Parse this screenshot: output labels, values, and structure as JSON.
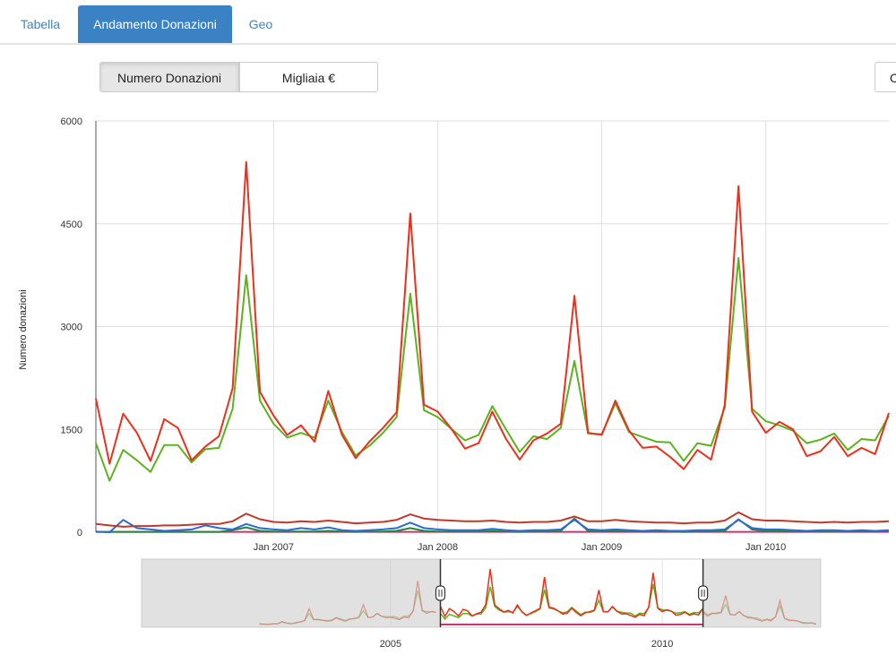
{
  "tabs": [
    {
      "label": "Tabella",
      "active": false
    },
    {
      "label": "Andamento Donazioni",
      "active": true
    },
    {
      "label": "Geo",
      "active": false
    }
  ],
  "toggle": {
    "left_label": "Numero Donazioni",
    "right_label": "Migliaia €",
    "selected": "Numero Donazioni"
  },
  "partial_button_label": "C",
  "colors": {
    "accent": "#3b82c4",
    "red": "#e8321e",
    "green": "#5db21f",
    "darkred": "#c0392b",
    "blue": "#2e6bd1",
    "darkgreen": "#1e8a3a",
    "magenta": "#d1306f"
  },
  "chart_data": {
    "type": "line",
    "ylabel": "Numero donazioni",
    "ylim": [
      0,
      6000
    ],
    "yticks": [
      0,
      1500,
      3000,
      4500,
      6000
    ],
    "xticks": [
      "Jan 2007",
      "Jan 2008",
      "Jan 2009",
      "Jan 2010"
    ],
    "xrange": [
      "2005-12",
      "2010-10"
    ],
    "grid": true,
    "series": [
      {
        "color": "#e8321e",
        "start": "2005-12",
        "values": [
          1950,
          1000,
          1730,
          1450,
          1040,
          1650,
          1520,
          1050,
          1250,
          1400,
          2100,
          5400,
          2050,
          1700,
          1420,
          1560,
          1320,
          2060,
          1420,
          1080,
          1320,
          1520,
          1750,
          4650,
          1860,
          1760,
          1510,
          1220,
          1300,
          1760,
          1360,
          1060,
          1340,
          1440,
          1580,
          3450,
          1450,
          1420,
          1920,
          1480,
          1230,
          1250,
          1100,
          920,
          1200,
          1060,
          1860,
          5050,
          1760,
          1450,
          1610,
          1500,
          1110,
          1180,
          1390,
          1110,
          1230,
          1140,
          1740
        ]
      },
      {
        "color": "#5db21f",
        "start": "2005-12",
        "values": [
          1300,
          750,
          1200,
          1050,
          880,
          1270,
          1270,
          1020,
          1210,
          1230,
          1800,
          3750,
          1920,
          1580,
          1380,
          1450,
          1380,
          1920,
          1460,
          1120,
          1260,
          1450,
          1680,
          3480,
          1780,
          1680,
          1510,
          1340,
          1420,
          1840,
          1500,
          1170,
          1400,
          1360,
          1520,
          2500,
          1440,
          1430,
          1880,
          1460,
          1390,
          1320,
          1310,
          1040,
          1300,
          1260,
          1820,
          4000,
          1800,
          1620,
          1560,
          1480,
          1300,
          1350,
          1440,
          1200,
          1360,
          1340,
          1700
        ]
      },
      {
        "color": "#c0392b",
        "start": "2005-12",
        "values": [
          120,
          100,
          80,
          90,
          90,
          100,
          100,
          110,
          120,
          120,
          160,
          270,
          190,
          150,
          140,
          160,
          150,
          170,
          150,
          130,
          140,
          150,
          180,
          260,
          200,
          180,
          170,
          160,
          160,
          170,
          150,
          140,
          150,
          150,
          170,
          230,
          160,
          160,
          180,
          160,
          150,
          140,
          140,
          130,
          140,
          140,
          170,
          290,
          190,
          170,
          170,
          160,
          150,
          140,
          150,
          140,
          150,
          150,
          160
        ]
      },
      {
        "color": "#2e6bd1",
        "start": "2005-12",
        "values": [
          10,
          0,
          180,
          60,
          40,
          20,
          30,
          40,
          100,
          60,
          40,
          120,
          60,
          40,
          30,
          60,
          40,
          70,
          30,
          20,
          30,
          40,
          60,
          140,
          60,
          40,
          30,
          30,
          30,
          50,
          30,
          20,
          30,
          30,
          40,
          180,
          40,
          30,
          40,
          30,
          20,
          30,
          20,
          20,
          30,
          30,
          40,
          180,
          60,
          40,
          40,
          30,
          20,
          30,
          30,
          20,
          30,
          20,
          30
        ]
      },
      {
        "color": "#1e8a3a",
        "start": "2005-12",
        "values": [
          5,
          5,
          5,
          5,
          5,
          5,
          5,
          5,
          5,
          5,
          30,
          70,
          20,
          10,
          10,
          10,
          10,
          20,
          10,
          5,
          10,
          10,
          20,
          60,
          20,
          10,
          10,
          10,
          10,
          20,
          10,
          5,
          10,
          10,
          20,
          200,
          20,
          10,
          20,
          10,
          10,
          10,
          10,
          5,
          10,
          10,
          20,
          190,
          40,
          20,
          20,
          10,
          10,
          10,
          10,
          10,
          10,
          10,
          20
        ]
      },
      {
        "color": "#d1306f",
        "start": "2005-12",
        "values": [
          5,
          5,
          5,
          5,
          5,
          5,
          5,
          5,
          5,
          5,
          5,
          5,
          5,
          5,
          5,
          5,
          5,
          5,
          5,
          5,
          5,
          5,
          5,
          5,
          5,
          5,
          5,
          5,
          5,
          5,
          5,
          5,
          5,
          5,
          5,
          5,
          5,
          5,
          5,
          5,
          5,
          5,
          5,
          5,
          5,
          5,
          5,
          5,
          5,
          5,
          5,
          5,
          5,
          5,
          5,
          5,
          5,
          5,
          5
        ]
      }
    ],
    "navigator": {
      "xticks": [
        "2005",
        "2010"
      ],
      "range": [
        "2000-06",
        "2012-12"
      ],
      "selected": [
        "2005-12",
        "2010-10"
      ]
    }
  }
}
